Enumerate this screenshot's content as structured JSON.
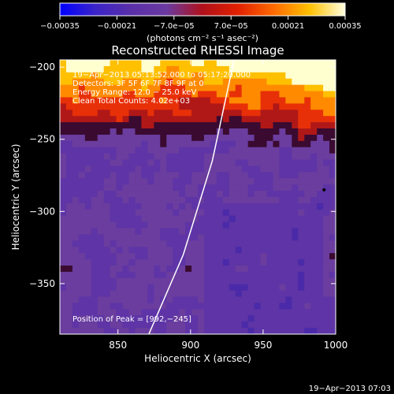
{
  "chart_data": {
    "type": "heatmap",
    "title": "Reconstructed RHESSI Image",
    "xlabel": "Heliocentric X (arcsec)",
    "ylabel": "Heliocentric Y (arcsec)",
    "xlim": [
      810,
      1000
    ],
    "ylim": [
      -385,
      -195
    ],
    "x_ticks": [
      850,
      900,
      950,
      1000
    ],
    "x_tick_labels": [
      "850",
      "900",
      "950",
      "1000"
    ],
    "y_ticks": [
      -200,
      -250,
      -300,
      -350
    ],
    "y_tick_labels": [
      "−200",
      "−250",
      "−300",
      "−350"
    ],
    "colorbar": {
      "range": [
        -0.00035,
        0.00035
      ],
      "tick_labels": [
        "−0.00035",
        "−0.00021",
        "−7.0e−05",
        "7.0e−05",
        "0.00021",
        "0.00035"
      ],
      "unit_label": "(photons cm⁻² s⁻¹ asec⁻²)",
      "colors": [
        "#0000ff",
        "#3b24c8",
        "#5a2fa8",
        "#6a3aa0",
        "#b0101a",
        "#e02000",
        "#ff6a00",
        "#ffc000",
        "#ffffe0"
      ]
    },
    "annotations": {
      "time_range": "19−Apr−2013 05:13:52.000 to 05:17:20.000",
      "detectors": "Detectors: 3F 5F 6F 7F 8F 9F  at 0",
      "energy": "Energy Range: 12.0 − 25.0 keV",
      "method": "Clean    Total Counts: 4.02e+03",
      "peak": "Position of Peak = [992,−245]",
      "timestamp": "19−Apr−2013 07:03"
    },
    "limb": {
      "description": "solar limb arc",
      "points": [
        [
          870,
          -388
        ],
        [
          895,
          -330
        ],
        [
          915,
          -265
        ],
        [
          930,
          -195
        ]
      ]
    },
    "peak_marker": [
      992,
      -245
    ]
  }
}
